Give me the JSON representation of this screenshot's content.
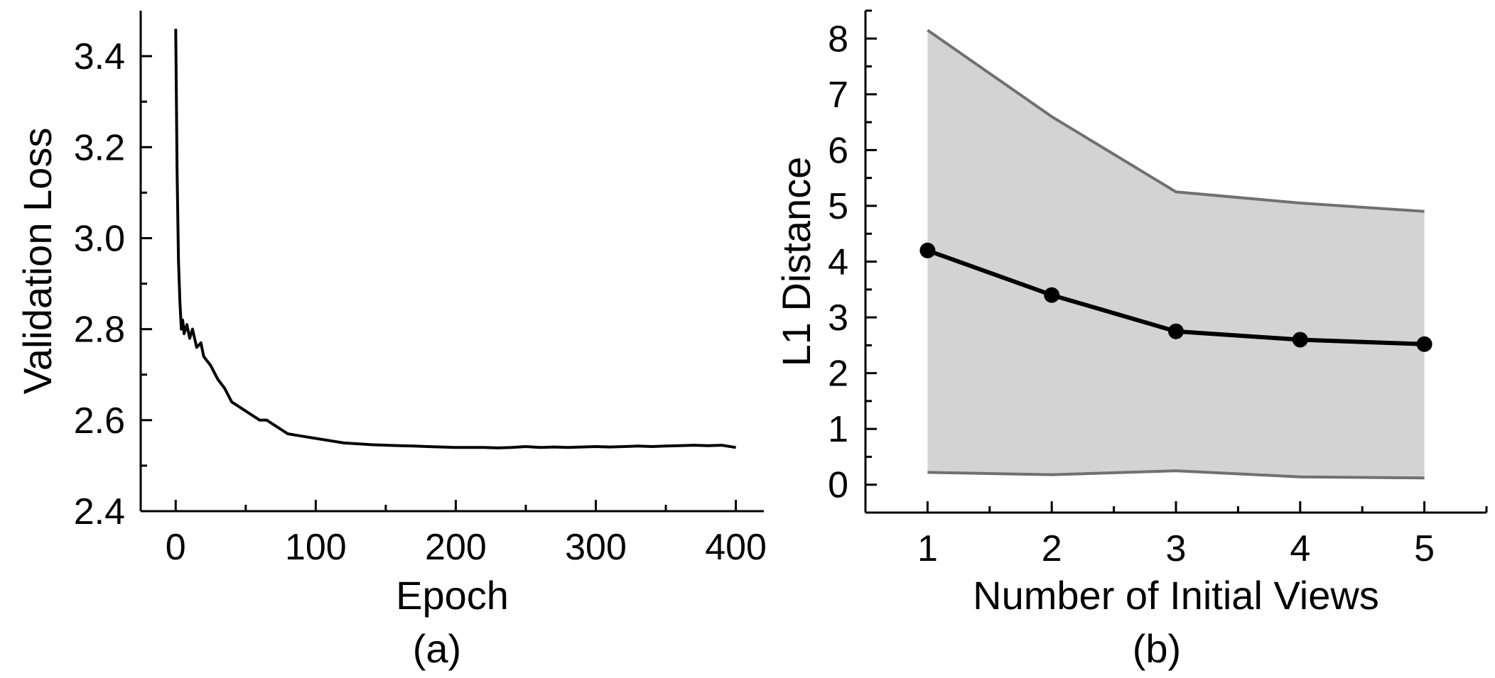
{
  "chart_data": [
    {
      "type": "line",
      "panel_label": "(a)",
      "xlabel": "Epoch",
      "ylabel": "Validation Loss",
      "xlim": [
        -25,
        420
      ],
      "ylim": [
        2.4,
        3.5
      ],
      "xticks": [
        0,
        100,
        200,
        300,
        400
      ],
      "xtick_labels": [
        "0",
        "100",
        "200",
        "300",
        "400"
      ],
      "yticks": [
        2.4,
        2.6,
        2.8,
        3.0,
        3.2,
        3.4
      ],
      "ytick_labels": [
        "2.4",
        "2.6",
        "2.8",
        "3.0",
        "3.2",
        "3.4"
      ],
      "line_color": "#000000",
      "series": [
        {
          "x": [
            0,
            1,
            2,
            3,
            4,
            5,
            6,
            8,
            10,
            12,
            15,
            18,
            20,
            25,
            30,
            35,
            40,
            45,
            50,
            55,
            60,
            65,
            70,
            80,
            90,
            100,
            110,
            120,
            130,
            140,
            150,
            160,
            170,
            180,
            190,
            200,
            210,
            220,
            230,
            240,
            250,
            260,
            270,
            280,
            290,
            300,
            310,
            320,
            330,
            340,
            350,
            360,
            370,
            380,
            390,
            400
          ],
          "y": [
            3.46,
            3.15,
            2.95,
            2.86,
            2.8,
            2.82,
            2.79,
            2.81,
            2.78,
            2.8,
            2.76,
            2.77,
            2.74,
            2.72,
            2.69,
            2.67,
            2.64,
            2.63,
            2.62,
            2.61,
            2.6,
            2.6,
            2.59,
            2.57,
            2.565,
            2.56,
            2.555,
            2.55,
            2.548,
            2.546,
            2.545,
            2.544,
            2.543,
            2.542,
            2.541,
            2.54,
            2.54,
            2.54,
            2.539,
            2.54,
            2.542,
            2.54,
            2.541,
            2.54,
            2.541,
            2.542,
            2.541,
            2.542,
            2.543,
            2.542,
            2.543,
            2.544,
            2.545,
            2.544,
            2.545,
            2.54
          ]
        }
      ]
    },
    {
      "type": "area",
      "panel_label": "(b)",
      "xlabel": "Number of Initial Views",
      "ylabel": "L1 Distance",
      "xlim": [
        0.5,
        5.5
      ],
      "ylim": [
        -0.5,
        8.5
      ],
      "xticks": [
        1,
        2,
        3,
        4,
        5
      ],
      "xtick_labels": [
        "1",
        "2",
        "3",
        "4",
        "5"
      ],
      "yticks": [
        0,
        1,
        2,
        3,
        4,
        5,
        6,
        7,
        8
      ],
      "ytick_labels": [
        "0",
        "1",
        "2",
        "3",
        "4",
        "5",
        "6",
        "7",
        "8"
      ],
      "x": [
        1,
        2,
        3,
        4,
        5
      ],
      "mean": [
        4.2,
        3.4,
        2.75,
        2.6,
        2.52
      ],
      "upper": [
        8.15,
        6.6,
        5.25,
        5.05,
        4.9
      ],
      "lower": [
        0.22,
        0.18,
        0.25,
        0.14,
        0.12
      ],
      "band_color": "#d3d3d3",
      "bound_color": "#707070",
      "mean_color": "#000000"
    }
  ]
}
